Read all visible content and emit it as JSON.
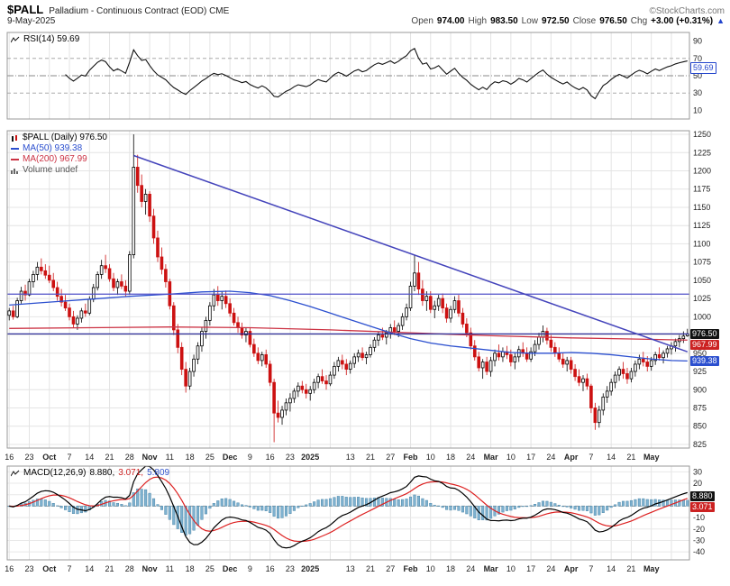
{
  "header": {
    "symbol": "$PALL",
    "description": "Palladium - Continuous Contract (EOD) CME",
    "copyright": "©StockCharts.com",
    "date": "9-May-2025",
    "ohlc": {
      "open_label": "Open",
      "open": "974.00",
      "high_label": "High",
      "high": "983.50",
      "low_label": "Low",
      "low": "972.50",
      "close_label": "Close",
      "close": "976.50",
      "chg_label": "Chg",
      "chg": "+3.00 (+0.31%)"
    },
    "arrow": "▲"
  },
  "rsi_panel": {
    "legend": "RSI(14) 59.69",
    "value_label": "59.69"
  },
  "main_panel": {
    "legend_symbol": "$PALL (Daily) 976.50",
    "legend_ma50": "MA(50) 939.38",
    "legend_ma200": "MA(200) 967.99",
    "legend_volume": "Volume undef",
    "price_boxes": {
      "close": "976.50",
      "ma200": "967.99",
      "ma50": "939.38"
    }
  },
  "macd_panel": {
    "legend_name": "MACD(12,26,9)",
    "legend_values": [
      "8.880,",
      "3.071,",
      "5.809"
    ],
    "box_macd": "8.880",
    "box_signal": "3.071"
  },
  "colors": {
    "up": "#000000",
    "down": "#cc1111",
    "ma50": "#2b4fcf",
    "ma200": "#cc3344",
    "trend": "#4444bb",
    "rsi_line": "#111111",
    "macd_line": "#000000",
    "signal_line": "#dd2222",
    "macd_hist_fill": "#7fb2d0",
    "macd_hist_stroke": "#4d88aa",
    "accent_blue": "#2244cc",
    "box_black": "#111111",
    "box_red": "#cc2222"
  },
  "chart_data": {
    "type": "candlestick",
    "title": "$PALL Palladium - Continuous Contract (EOD) CME",
    "price_axis": {
      "min": 825,
      "max": 1250,
      "step": 25
    },
    "rsi_axis": {
      "labels": [
        90,
        70,
        50,
        30,
        10
      ],
      "overbought": 70,
      "midline": 50,
      "oversold": 30
    },
    "macd_axis": {
      "labels": [
        30,
        20,
        10,
        -10,
        -20,
        -30,
        -40
      ]
    },
    "rsi": {
      "period": 14,
      "last": 59.69
    },
    "macd": {
      "fast": 12,
      "slow": 26,
      "signal": 9,
      "last_macd": 8.88,
      "last_signal": 3.071,
      "last_hist": 5.809
    },
    "x_ticks": [
      [
        0,
        "16"
      ],
      [
        5,
        "23"
      ],
      [
        10,
        "Oct"
      ],
      [
        15,
        "7"
      ],
      [
        20,
        "14"
      ],
      [
        25,
        "21"
      ],
      [
        30,
        "28"
      ],
      [
        35,
        "Nov"
      ],
      [
        40,
        "11"
      ],
      [
        45,
        "18"
      ],
      [
        50,
        "25"
      ],
      [
        55,
        "Dec"
      ],
      [
        60,
        "9"
      ],
      [
        65,
        "16"
      ],
      [
        70,
        "23"
      ],
      [
        75,
        "2025"
      ],
      [
        80,
        ""
      ],
      [
        85,
        "13"
      ],
      [
        90,
        "21"
      ],
      [
        95,
        "27"
      ],
      [
        100,
        "Feb"
      ],
      [
        105,
        "10"
      ],
      [
        110,
        "18"
      ],
      [
        115,
        "24"
      ],
      [
        120,
        "Mar"
      ],
      [
        125,
        "10"
      ],
      [
        130,
        "17"
      ],
      [
        135,
        "24"
      ],
      [
        140,
        "Apr"
      ],
      [
        145,
        "7"
      ],
      [
        150,
        "14"
      ],
      [
        155,
        "21"
      ],
      [
        160,
        "May"
      ],
      [
        165,
        ""
      ]
    ],
    "hlines": [
      {
        "value": 1031,
        "color": "#5050c8"
      },
      {
        "value": 976.5,
        "color": "#30309a"
      }
    ],
    "trendline": [
      [
        31,
        1221
      ],
      [
        169,
        952
      ]
    ],
    "ma50_keypoints": [
      [
        0,
        1016
      ],
      [
        10,
        1020
      ],
      [
        20,
        1024
      ],
      [
        30,
        1028
      ],
      [
        40,
        1031
      ],
      [
        48,
        1034
      ],
      [
        55,
        1035
      ],
      [
        60,
        1033
      ],
      [
        65,
        1029
      ],
      [
        70,
        1022
      ],
      [
        75,
        1014
      ],
      [
        80,
        1005
      ],
      [
        85,
        996
      ],
      [
        90,
        987
      ],
      [
        95,
        978
      ],
      [
        100,
        970
      ],
      [
        105,
        964
      ],
      [
        110,
        960
      ],
      [
        115,
        957
      ],
      [
        120,
        954
      ],
      [
        125,
        951
      ],
      [
        130,
        950
      ],
      [
        135,
        950
      ],
      [
        140,
        951
      ],
      [
        145,
        950
      ],
      [
        150,
        948
      ],
      [
        155,
        945
      ],
      [
        160,
        942
      ],
      [
        165,
        940
      ],
      [
        169,
        939.4
      ]
    ],
    "ma200_keypoints": [
      [
        0,
        984
      ],
      [
        20,
        985
      ],
      [
        40,
        986
      ],
      [
        60,
        985
      ],
      [
        80,
        982
      ],
      [
        100,
        978
      ],
      [
        120,
        974
      ],
      [
        140,
        971
      ],
      [
        155,
        969.5
      ],
      [
        169,
        968
      ]
    ],
    "candles": [
      [
        1002,
        1012,
        995,
        1008
      ],
      [
        1008,
        1015,
        996,
        1000
      ],
      [
        1000,
        1026,
        998,
        1022
      ],
      [
        1022,
        1041,
        1018,
        1035
      ],
      [
        1035,
        1044,
        1022,
        1030
      ],
      [
        1030,
        1052,
        1028,
        1048
      ],
      [
        1048,
        1063,
        1040,
        1058
      ],
      [
        1058,
        1075,
        1050,
        1068
      ],
      [
        1068,
        1080,
        1058,
        1063
      ],
      [
        1063,
        1072,
        1052,
        1057
      ],
      [
        1057,
        1070,
        1046,
        1050
      ],
      [
        1050,
        1060,
        1035,
        1040
      ],
      [
        1040,
        1048,
        1022,
        1028
      ],
      [
        1028,
        1038,
        1014,
        1020
      ],
      [
        1020,
        1030,
        1008,
        1012
      ],
      [
        1012,
        1018,
        995,
        1000
      ],
      [
        1000,
        1008,
        985,
        990
      ],
      [
        990,
        1002,
        982,
        998
      ],
      [
        998,
        1012,
        992,
        1008
      ],
      [
        1008,
        1018,
        1000,
        1005
      ],
      [
        1005,
        1028,
        1002,
        1024
      ],
      [
        1024,
        1045,
        1020,
        1040
      ],
      [
        1040,
        1062,
        1036,
        1058
      ],
      [
        1058,
        1078,
        1052,
        1070
      ],
      [
        1070,
        1085,
        1060,
        1066
      ],
      [
        1066,
        1072,
        1048,
        1052
      ],
      [
        1052,
        1060,
        1035,
        1040
      ],
      [
        1040,
        1052,
        1030,
        1048
      ],
      [
        1048,
        1058,
        1038,
        1042
      ],
      [
        1042,
        1050,
        1028,
        1035
      ],
      [
        1035,
        1090,
        1030,
        1085
      ],
      [
        1085,
        1250,
        1080,
        1205
      ],
      [
        1205,
        1222,
        1170,
        1180
      ],
      [
        1180,
        1195,
        1150,
        1158
      ],
      [
        1158,
        1175,
        1140,
        1168
      ],
      [
        1168,
        1172,
        1130,
        1138
      ],
      [
        1138,
        1148,
        1100,
        1108
      ],
      [
        1108,
        1118,
        1075,
        1082
      ],
      [
        1082,
        1095,
        1058,
        1065
      ],
      [
        1065,
        1072,
        1040,
        1048
      ],
      [
        1048,
        1052,
        1010,
        1015
      ],
      [
        1015,
        1020,
        975,
        982
      ],
      [
        982,
        990,
        950,
        958
      ],
      [
        958,
        965,
        920,
        928
      ],
      [
        928,
        938,
        896,
        905
      ],
      [
        905,
        930,
        900,
        925
      ],
      [
        925,
        948,
        918,
        942
      ],
      [
        942,
        965,
        935,
        960
      ],
      [
        960,
        985,
        952,
        980
      ],
      [
        980,
        1000,
        970,
        995
      ],
      [
        995,
        1020,
        988,
        1015
      ],
      [
        1015,
        1038,
        1008,
        1030
      ],
      [
        1030,
        1042,
        1015,
        1022
      ],
      [
        1022,
        1035,
        1010,
        1028
      ],
      [
        1028,
        1036,
        1012,
        1018
      ],
      [
        1018,
        1025,
        1000,
        1005
      ],
      [
        1005,
        1012,
        988,
        992
      ],
      [
        992,
        1000,
        978,
        985
      ],
      [
        985,
        992,
        970,
        975
      ],
      [
        975,
        985,
        965,
        980
      ],
      [
        980,
        985,
        958,
        962
      ],
      [
        962,
        970,
        945,
        950
      ],
      [
        950,
        958,
        935,
        940
      ],
      [
        940,
        952,
        932,
        948
      ],
      [
        948,
        955,
        930,
        935
      ],
      [
        935,
        940,
        905,
        910
      ],
      [
        910,
        915,
        828,
        868
      ],
      [
        868,
        885,
        855,
        862
      ],
      [
        862,
        878,
        852,
        872
      ],
      [
        872,
        888,
        865,
        882
      ],
      [
        882,
        895,
        870,
        888
      ],
      [
        888,
        902,
        882,
        898
      ],
      [
        898,
        910,
        890,
        905
      ],
      [
        905,
        912,
        895,
        900
      ],
      [
        900,
        908,
        888,
        895
      ],
      [
        895,
        905,
        885,
        900
      ],
      [
        900,
        915,
        895,
        910
      ],
      [
        910,
        922,
        902,
        918
      ],
      [
        918,
        928,
        908,
        912
      ],
      [
        912,
        920,
        900,
        908
      ],
      [
        908,
        925,
        905,
        920
      ],
      [
        920,
        938,
        915,
        932
      ],
      [
        932,
        945,
        925,
        940
      ],
      [
        940,
        948,
        928,
        935
      ],
      [
        935,
        942,
        920,
        928
      ],
      [
        928,
        940,
        922,
        936
      ],
      [
        936,
        950,
        930,
        945
      ],
      [
        945,
        955,
        938,
        950
      ],
      [
        950,
        958,
        940,
        944
      ],
      [
        944,
        952,
        935,
        948
      ],
      [
        948,
        962,
        944,
        958
      ],
      [
        958,
        972,
        952,
        968
      ],
      [
        968,
        980,
        960,
        975
      ],
      [
        975,
        985,
        968,
        972
      ],
      [
        972,
        982,
        962,
        978
      ],
      [
        978,
        990,
        970,
        985
      ],
      [
        985,
        995,
        975,
        980
      ],
      [
        980,
        992,
        972,
        988
      ],
      [
        988,
        1005,
        982,
        1000
      ],
      [
        1000,
        1018,
        995,
        1012
      ],
      [
        1012,
        1048,
        1008,
        1042
      ],
      [
        1042,
        1085,
        1035,
        1060
      ],
      [
        1060,
        1075,
        1030,
        1038
      ],
      [
        1038,
        1050,
        1015,
        1022
      ],
      [
        1022,
        1035,
        1008,
        1028
      ],
      [
        1028,
        1035,
        1005,
        1010
      ],
      [
        1010,
        1022,
        998,
        1015
      ],
      [
        1015,
        1030,
        1008,
        1025
      ],
      [
        1025,
        1032,
        1005,
        1012
      ],
      [
        1012,
        1018,
        992,
        998
      ],
      [
        998,
        1015,
        992,
        1010
      ],
      [
        1010,
        1028,
        1005,
        1022
      ],
      [
        1022,
        1030,
        1000,
        1005
      ],
      [
        1005,
        1012,
        985,
        990
      ],
      [
        990,
        998,
        972,
        978
      ],
      [
        978,
        985,
        955,
        960
      ],
      [
        960,
        968,
        940,
        945
      ],
      [
        945,
        952,
        925,
        930
      ],
      [
        930,
        942,
        915,
        938
      ],
      [
        938,
        945,
        920,
        925
      ],
      [
        925,
        945,
        918,
        940
      ],
      [
        940,
        955,
        932,
        950
      ],
      [
        950,
        962,
        940,
        945
      ],
      [
        945,
        958,
        938,
        952
      ],
      [
        952,
        960,
        942,
        948
      ],
      [
        948,
        955,
        932,
        938
      ],
      [
        938,
        950,
        928,
        945
      ],
      [
        945,
        960,
        938,
        955
      ],
      [
        955,
        965,
        945,
        950
      ],
      [
        950,
        958,
        938,
        942
      ],
      [
        942,
        958,
        938,
        952
      ],
      [
        952,
        968,
        946,
        962
      ],
      [
        962,
        978,
        955,
        972
      ],
      [
        972,
        988,
        965,
        980
      ],
      [
        980,
        985,
        962,
        968
      ],
      [
        968,
        975,
        952,
        958
      ],
      [
        958,
        965,
        945,
        950
      ],
      [
        950,
        958,
        938,
        942
      ],
      [
        942,
        950,
        930,
        935
      ],
      [
        935,
        945,
        925,
        940
      ],
      [
        940,
        945,
        922,
        928
      ],
      [
        928,
        935,
        912,
        918
      ],
      [
        918,
        928,
        905,
        910
      ],
      [
        910,
        920,
        898,
        915
      ],
      [
        915,
        922,
        900,
        905
      ],
      [
        905,
        908,
        868,
        875
      ],
      [
        875,
        882,
        845,
        855
      ],
      [
        855,
        878,
        848,
        872
      ],
      [
        872,
        895,
        865,
        890
      ],
      [
        890,
        905,
        882,
        898
      ],
      [
        898,
        915,
        892,
        910
      ],
      [
        910,
        925,
        902,
        920
      ],
      [
        920,
        932,
        912,
        928
      ],
      [
        928,
        938,
        915,
        922
      ],
      [
        922,
        930,
        908,
        915
      ],
      [
        915,
        930,
        910,
        925
      ],
      [
        925,
        940,
        918,
        935
      ],
      [
        935,
        948,
        928,
        942
      ],
      [
        942,
        952,
        932,
        938
      ],
      [
        938,
        946,
        925,
        932
      ],
      [
        932,
        945,
        926,
        940
      ],
      [
        940,
        952,
        934,
        948
      ],
      [
        948,
        958,
        940,
        944
      ],
      [
        944,
        954,
        936,
        950
      ],
      [
        950,
        960,
        944,
        956
      ],
      [
        956,
        965,
        948,
        960
      ],
      [
        960,
        970,
        952,
        966
      ],
      [
        966,
        975,
        958,
        970
      ],
      [
        970,
        980,
        964,
        973.5
      ],
      [
        974,
        983.5,
        972.5,
        976.5
      ]
    ]
  }
}
